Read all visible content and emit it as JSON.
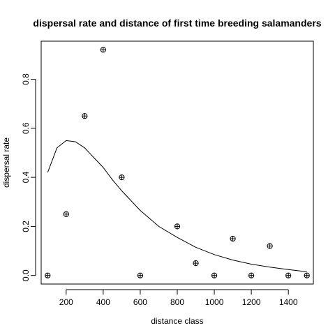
{
  "chart_data": {
    "type": "scatter",
    "title": "dispersal rate and distance of first time breeding salamanders",
    "xlabel": "distance class",
    "ylabel": "dispersal rate",
    "xlim": [
      65,
      1535
    ],
    "ylim": [
      -0.035,
      0.955
    ],
    "grid": false,
    "legend": "none",
    "x_ticks": [
      200,
      400,
      600,
      800,
      1000,
      1200,
      1400
    ],
    "y_ticks": [
      0.0,
      0.2,
      0.4,
      0.6,
      0.8
    ],
    "x_tick_labels": [
      "200",
      "400",
      "600",
      "800",
      "1000",
      "1200",
      "1400"
    ],
    "y_tick_labels": [
      "0.0",
      "0.2",
      "0.4",
      "0.6",
      "0.8"
    ],
    "series": [
      {
        "type": "scatter",
        "marker": "circled-plus",
        "color": "#000000",
        "x": [
          100,
          200,
          300,
          400,
          500,
          600,
          800,
          900,
          1000,
          1100,
          1200,
          1300,
          1400,
          1500
        ],
        "y": [
          0.0,
          0.25,
          0.65,
          0.92,
          0.4,
          0.0,
          0.2,
          0.05,
          0.0,
          0.15,
          0.0,
          0.12,
          0.0,
          0.0
        ]
      },
      {
        "type": "line",
        "color": "#000000",
        "x": [
          100,
          150,
          200,
          250,
          300,
          350,
          400,
          450,
          500,
          600,
          700,
          800,
          900,
          1000,
          1100,
          1200,
          1300,
          1400,
          1500
        ],
        "y": [
          0.42,
          0.52,
          0.55,
          0.545,
          0.52,
          0.48,
          0.44,
          0.39,
          0.345,
          0.265,
          0.2,
          0.155,
          0.115,
          0.085,
          0.063,
          0.046,
          0.034,
          0.024,
          0.015
        ]
      }
    ]
  }
}
